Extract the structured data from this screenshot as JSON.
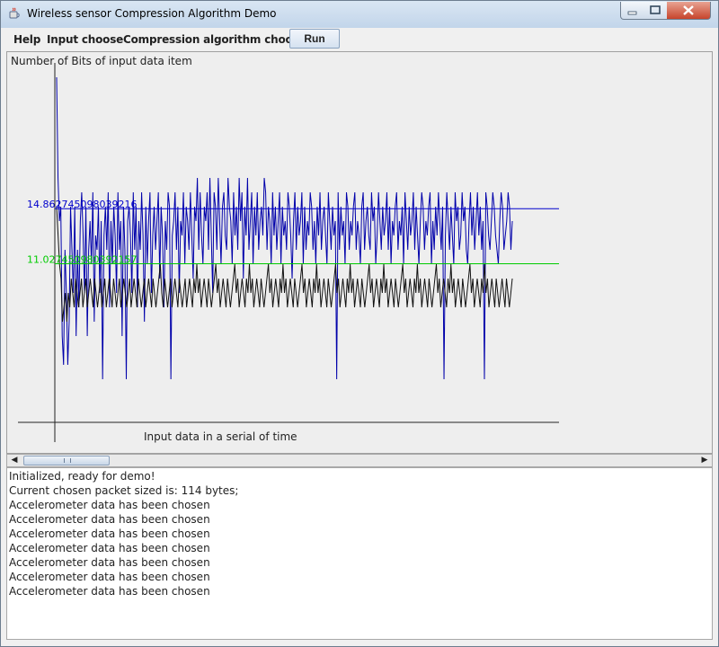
{
  "window": {
    "title": "Wireless sensor Compression Algorithm Demo"
  },
  "menu": {
    "help": "Help",
    "input_choose": "Input choose",
    "compression_choose": "Compression algorithm choose",
    "run": "Run"
  },
  "chart_data": {
    "type": "line",
    "title": "",
    "ylabel": "Number of Bits of input data item",
    "xlabel": "Input data in a serial of time",
    "ylim": [
      0,
      25
    ],
    "grid": false,
    "legend": "none",
    "reference_lines": [
      {
        "label": "14.862745098039216",
        "value": 14.86,
        "color": "#0000cc"
      },
      {
        "label": "11.027450980392157",
        "value": 11.03,
        "color": "#00cc00"
      }
    ],
    "series": [
      {
        "color": "#0000aa",
        "values": [
          24,
          17,
          14,
          15,
          6,
          4,
          12,
          9,
          4,
          7,
          15,
          12,
          9,
          15,
          6,
          12,
          8,
          14,
          16,
          13,
          9,
          15,
          6,
          12,
          14,
          11,
          16,
          7,
          13,
          12,
          15,
          9,
          14,
          3,
          13,
          15,
          12,
          16,
          8,
          14,
          11,
          15,
          13,
          9,
          16,
          12,
          14,
          6,
          15,
          12,
          3,
          14,
          15,
          13,
          9,
          16,
          12,
          15,
          8,
          14,
          12,
          16,
          13,
          7,
          15,
          11,
          14,
          16,
          9,
          13,
          15,
          12,
          14,
          16,
          10,
          15,
          13,
          8,
          14,
          12,
          16,
          15,
          3,
          13,
          14,
          16,
          12,
          15,
          9,
          14,
          13,
          16,
          11,
          15,
          14,
          12,
          16,
          13,
          10,
          15,
          14,
          17,
          12,
          16,
          13,
          11,
          15,
          14,
          16,
          12,
          17,
          13,
          9,
          16,
          15,
          12,
          17,
          14,
          11,
          15,
          16,
          13,
          12,
          17,
          15,
          14,
          11,
          16,
          13,
          15,
          12,
          17,
          14,
          16,
          10,
          15,
          13,
          17,
          12,
          14,
          16,
          11,
          15,
          13,
          16,
          12,
          14,
          15,
          13,
          17,
          16,
          12,
          15,
          14,
          11,
          16,
          13,
          15,
          12,
          14,
          16,
          11,
          15,
          13,
          14,
          12,
          16,
          15,
          13,
          10,
          14,
          16,
          12,
          15,
          13,
          14,
          16,
          11,
          15,
          12,
          14,
          13,
          16,
          15,
          12,
          14,
          11,
          15,
          13,
          16,
          12,
          14,
          15,
          13,
          11,
          16,
          14,
          12,
          15,
          13,
          14,
          3,
          16,
          12,
          15,
          13,
          14,
          11,
          16,
          15,
          12,
          14,
          13,
          15,
          16,
          12,
          14,
          13,
          11,
          15,
          16,
          12,
          14,
          15,
          13,
          12,
          16,
          14,
          15,
          11,
          13,
          16,
          14,
          12,
          15,
          13,
          14,
          16,
          12,
          15,
          11,
          14,
          13,
          15,
          16,
          12,
          14,
          13,
          15,
          11,
          16,
          14,
          12,
          15,
          13,
          14,
          16,
          12,
          15,
          13,
          11,
          14,
          16,
          15,
          12,
          14,
          13,
          15,
          16,
          11,
          14,
          12,
          15,
          13,
          16,
          14,
          12,
          15,
          3,
          13,
          16,
          14,
          12,
          15,
          13,
          11,
          16,
          14,
          15,
          12,
          13,
          16,
          14,
          15,
          12,
          11,
          14,
          16,
          13,
          15,
          12,
          14,
          16,
          13,
          15,
          12,
          14,
          3,
          16,
          15,
          13,
          12,
          14,
          16,
          15,
          13,
          12,
          11,
          14,
          16,
          15,
          12,
          13,
          14,
          16,
          15,
          12,
          14
        ]
      },
      {
        "color": "#111111",
        "values": [
          15,
          13,
          11,
          10,
          7,
          8,
          9,
          7,
          9,
          8,
          10,
          9,
          8,
          10,
          9,
          8,
          9,
          10,
          8,
          9,
          10,
          8,
          9,
          10,
          9,
          8,
          10,
          9,
          8,
          9,
          10,
          8,
          9,
          10,
          8,
          9,
          10,
          9,
          8,
          10,
          9,
          8,
          9,
          10,
          8,
          9,
          10,
          9,
          8,
          9,
          10,
          8,
          9,
          10,
          9,
          8,
          10,
          9,
          8,
          9,
          10,
          8,
          9,
          10,
          9,
          8,
          10,
          9,
          8,
          9,
          10,
          11,
          9,
          8,
          10,
          9,
          8,
          9,
          10,
          8,
          9,
          10,
          9,
          8,
          10,
          9,
          8,
          9,
          10,
          8,
          9,
          10,
          9,
          8,
          10,
          9,
          11,
          9,
          10,
          8,
          9,
          10,
          9,
          8,
          10,
          9,
          8,
          9,
          10,
          11,
          9,
          10,
          8,
          9,
          10,
          9,
          8,
          10,
          9,
          8,
          9,
          10,
          11,
          9,
          10,
          8,
          9,
          10,
          9,
          8,
          10,
          9,
          11,
          9,
          10,
          8,
          9,
          10,
          9,
          8,
          10,
          9,
          8,
          9,
          10,
          11,
          9,
          10,
          8,
          9,
          10,
          9,
          8,
          10,
          9,
          11,
          9,
          10,
          8,
          9,
          10,
          9,
          8,
          10,
          9,
          8,
          9,
          10,
          11,
          9,
          10,
          8,
          9,
          10,
          9,
          8,
          10,
          9,
          11,
          9,
          10,
          8,
          9,
          10,
          9,
          8,
          10,
          9,
          8,
          9,
          10,
          11,
          9,
          10,
          8,
          9,
          10,
          9,
          8,
          10,
          9,
          11,
          9,
          10,
          8,
          9,
          10,
          9,
          8,
          10,
          9,
          8,
          9,
          10,
          11,
          9,
          10,
          8,
          9,
          10,
          9,
          8,
          10,
          9,
          11,
          9,
          10,
          8,
          9,
          10,
          9,
          8,
          10,
          9,
          8,
          9,
          10,
          11,
          9,
          10,
          8,
          9,
          10,
          9,
          8,
          10,
          9,
          11,
          9,
          10,
          8,
          9,
          10,
          9,
          8,
          10,
          9,
          8,
          9,
          10,
          11,
          9,
          10,
          8,
          9,
          10,
          9,
          8,
          10,
          9,
          11,
          9,
          10,
          8,
          9,
          10,
          9,
          8,
          10,
          9,
          8,
          9,
          10,
          11,
          9,
          10,
          8,
          9,
          10,
          9,
          8,
          10,
          9,
          11,
          9,
          10,
          8,
          9,
          10,
          9,
          8,
          10,
          9,
          8,
          9,
          10,
          9,
          8,
          10,
          9,
          8,
          9,
          10
        ]
      }
    ]
  },
  "log": {
    "lines": [
      "Initialized, ready for demo!",
      "Current chosen packet sized is: 114 bytes;",
      "Accelerometer data has been chosen",
      "Accelerometer data has been chosen",
      "Accelerometer data has been chosen",
      "Accelerometer data has been chosen",
      "Accelerometer data has been chosen",
      "Accelerometer data has been chosen",
      "Accelerometer data has been chosen"
    ]
  },
  "icons": {
    "app": "java-coffee-cup-icon",
    "minimize": "minimize-icon",
    "maximize": "maximize-icon",
    "close": "close-icon",
    "scroll_left": "arrow-left-icon",
    "scroll_right": "arrow-right-icon"
  }
}
